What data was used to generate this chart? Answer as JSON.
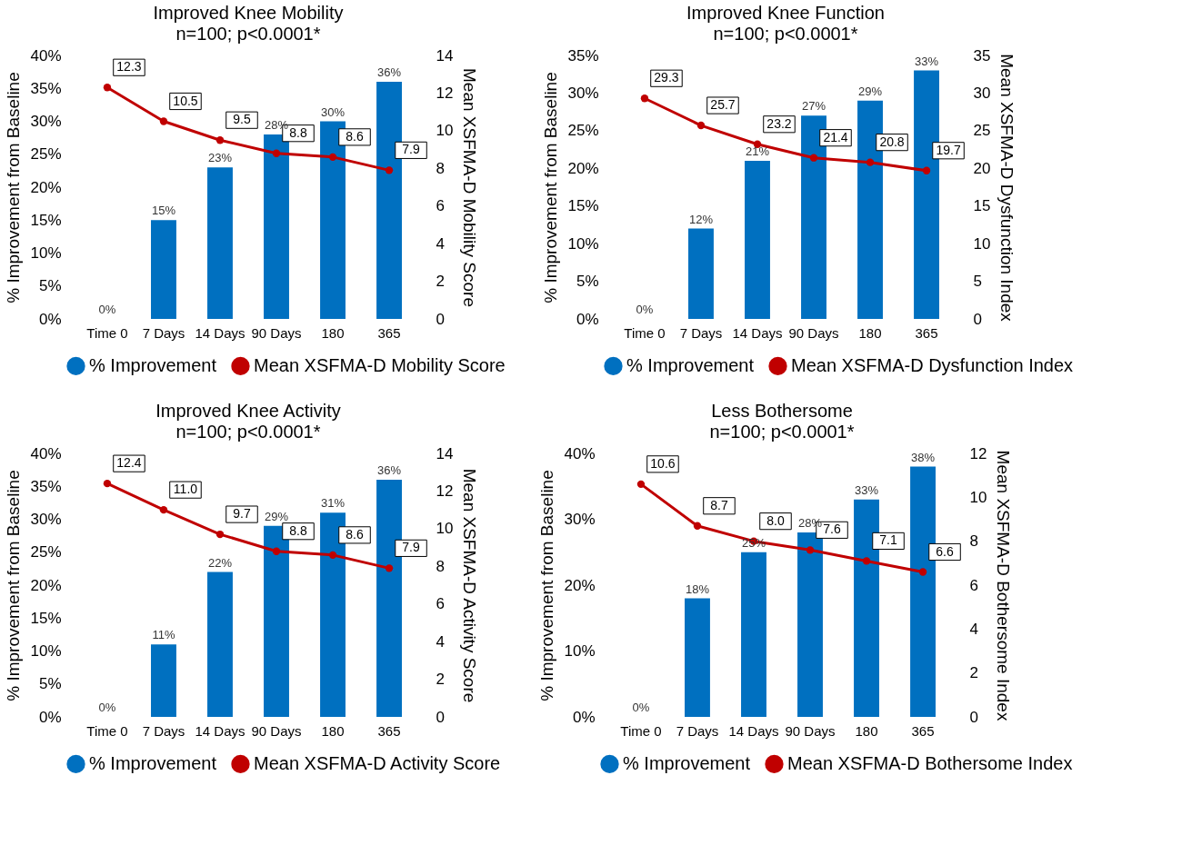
{
  "chart_data": [
    {
      "type": "bar",
      "title": "Improved Knee Mobility",
      "subtitle": "n=100; p<0.0001*",
      "ylabel": "% Improvement from Baseline",
      "y2label": "Mean XSFMA-D Mobility Score",
      "categories": [
        "Time 0",
        "7 Days",
        "14 Days",
        "90 Days",
        "180",
        "365"
      ],
      "legend": "bottom",
      "marker": "circle",
      "series": [
        {
          "name": "% Improvement",
          "color": "#0070c0",
          "values": [
            0,
            15,
            23,
            28,
            30,
            36
          ],
          "value_labels": [
            "0%",
            "15%",
            "23%",
            "28%",
            "30%",
            "36%"
          ]
        },
        {
          "name": "Mean XSFMA-D Mobility Score",
          "type": "line",
          "axis": "y2",
          "color": "#c00000",
          "values": [
            12.3,
            10.5,
            9.5,
            8.8,
            8.6,
            7.9
          ],
          "value_labels": [
            "12.3",
            "10.5",
            "9.5",
            "8.8",
            "8.6",
            "7.9"
          ]
        }
      ],
      "ylim": [
        0,
        40
      ],
      "yticks": [
        {
          "value": 0,
          "label": "0%"
        },
        {
          "value": 5,
          "label": "5%"
        },
        {
          "value": 10,
          "label": "10%"
        },
        {
          "value": 15,
          "label": "15%"
        },
        {
          "value": 20,
          "label": "20%"
        },
        {
          "value": 25,
          "label": "25%"
        },
        {
          "value": 30,
          "label": "30%"
        },
        {
          "value": 35,
          "label": "35%"
        },
        {
          "value": 40,
          "label": "40%"
        }
      ],
      "y2lim": [
        0,
        14
      ],
      "y2ticks": [
        0,
        2,
        4,
        6,
        8,
        10,
        12,
        14
      ]
    },
    {
      "type": "bar",
      "title": "Improved Knee Function",
      "subtitle": "n=100; p<0.0001*",
      "ylabel": "% Improvement from Baseline",
      "y2label": "Mean XSFMA-D Dysfunction Index",
      "categories": [
        "Time 0",
        "7 Days",
        "14 Days",
        "90 Days",
        "180",
        "365"
      ],
      "legend": "bottom",
      "marker": "circle",
      "series": [
        {
          "name": "% Improvement",
          "color": "#0070c0",
          "values": [
            0,
            12,
            21,
            27,
            29,
            33
          ],
          "value_labels": [
            "0%",
            "12%",
            "21%",
            "27%",
            "29%",
            "33%"
          ]
        },
        {
          "name": "Mean XSFMA-D Dysfunction Index",
          "type": "line",
          "axis": "y2",
          "color": "#c00000",
          "values": [
            29.3,
            25.7,
            23.2,
            21.4,
            20.8,
            19.7
          ],
          "value_labels": [
            "29.3",
            "25.7",
            "23.2",
            "21.4",
            "20.8",
            "19.7"
          ]
        }
      ],
      "ylim": [
        0,
        35
      ],
      "yticks": [
        {
          "value": 0,
          "label": "0%"
        },
        {
          "value": 5,
          "label": "5%"
        },
        {
          "value": 10,
          "label": "10%"
        },
        {
          "value": 15,
          "label": "15%"
        },
        {
          "value": 20,
          "label": "20%"
        },
        {
          "value": 25,
          "label": "25%"
        },
        {
          "value": 30,
          "label": "30%"
        },
        {
          "value": 35,
          "label": "35%"
        }
      ],
      "y2lim": [
        0,
        35
      ],
      "y2ticks": [
        0,
        5,
        10,
        15,
        20,
        25,
        30,
        35
      ]
    },
    {
      "type": "bar",
      "title": "Improved Knee Activity",
      "subtitle": "n=100; p<0.0001*",
      "ylabel": "% Improvement from Baseline",
      "y2label": "Mean XSFMA-D Activity Score",
      "categories": [
        "Time 0",
        "7 Days",
        "14 Days",
        "90 Days",
        "180",
        "365"
      ],
      "legend": "bottom",
      "marker": "circle",
      "series": [
        {
          "name": "% Improvement",
          "color": "#0070c0",
          "values": [
            0,
            11,
            22,
            29,
            31,
            36
          ],
          "value_labels": [
            "0%",
            "11%",
            "22%",
            "29%",
            "31%",
            "36%"
          ]
        },
        {
          "name": "Mean XSFMA-D Activity Score",
          "type": "line",
          "axis": "y2",
          "color": "#c00000",
          "values": [
            12.4,
            11.0,
            9.7,
            8.8,
            8.6,
            7.9
          ],
          "value_labels": [
            "12.4",
            "11.0",
            "9.7",
            "8.8",
            "8.6",
            "7.9"
          ]
        }
      ],
      "ylim": [
        0,
        40
      ],
      "yticks": [
        {
          "value": 0,
          "label": "0%"
        },
        {
          "value": 5,
          "label": "5%"
        },
        {
          "value": 10,
          "label": "10%"
        },
        {
          "value": 15,
          "label": "15%"
        },
        {
          "value": 20,
          "label": "20%"
        },
        {
          "value": 25,
          "label": "25%"
        },
        {
          "value": 30,
          "label": "30%"
        },
        {
          "value": 35,
          "label": "35%"
        },
        {
          "value": 40,
          "label": "40%"
        }
      ],
      "y2lim": [
        0,
        14
      ],
      "y2ticks": [
        0,
        2,
        4,
        6,
        8,
        10,
        12,
        14
      ]
    },
    {
      "type": "bar",
      "title": "Less Bothersome",
      "subtitle": "n=100; p<0.0001*",
      "ylabel": "% Improvement from Baseline",
      "y2label": "Mean XSFMA-D Bothersome Index",
      "categories": [
        "Time 0",
        "7 Days",
        "14 Days",
        "90 Days",
        "180",
        "365"
      ],
      "legend": "bottom",
      "marker": "circle",
      "series": [
        {
          "name": "% Improvement",
          "color": "#0070c0",
          "values": [
            0,
            18,
            25,
            28,
            33,
            38
          ],
          "value_labels": [
            "0%",
            "18%",
            "25%",
            "28%",
            "33%",
            "38%"
          ]
        },
        {
          "name": "Mean XSFMA-D Bothersome Index",
          "type": "line",
          "axis": "y2",
          "color": "#c00000",
          "values": [
            10.6,
            8.7,
            8.0,
            7.6,
            7.1,
            6.6
          ],
          "value_labels": [
            "10.6",
            "8.7",
            "8.0",
            "7.6",
            "7.1",
            "6.6"
          ]
        }
      ],
      "ylim": [
        0,
        40
      ],
      "yticks": [
        {
          "value": 0,
          "label": "0%"
        },
        {
          "value": 10,
          "label": "10%"
        },
        {
          "value": 20,
          "label": "20%"
        },
        {
          "value": 30,
          "label": "30%"
        },
        {
          "value": 40,
          "label": "40%"
        }
      ],
      "y2lim": [
        0,
        12
      ],
      "y2ticks": [
        0,
        2,
        4,
        6,
        8,
        10,
        12
      ]
    }
  ]
}
